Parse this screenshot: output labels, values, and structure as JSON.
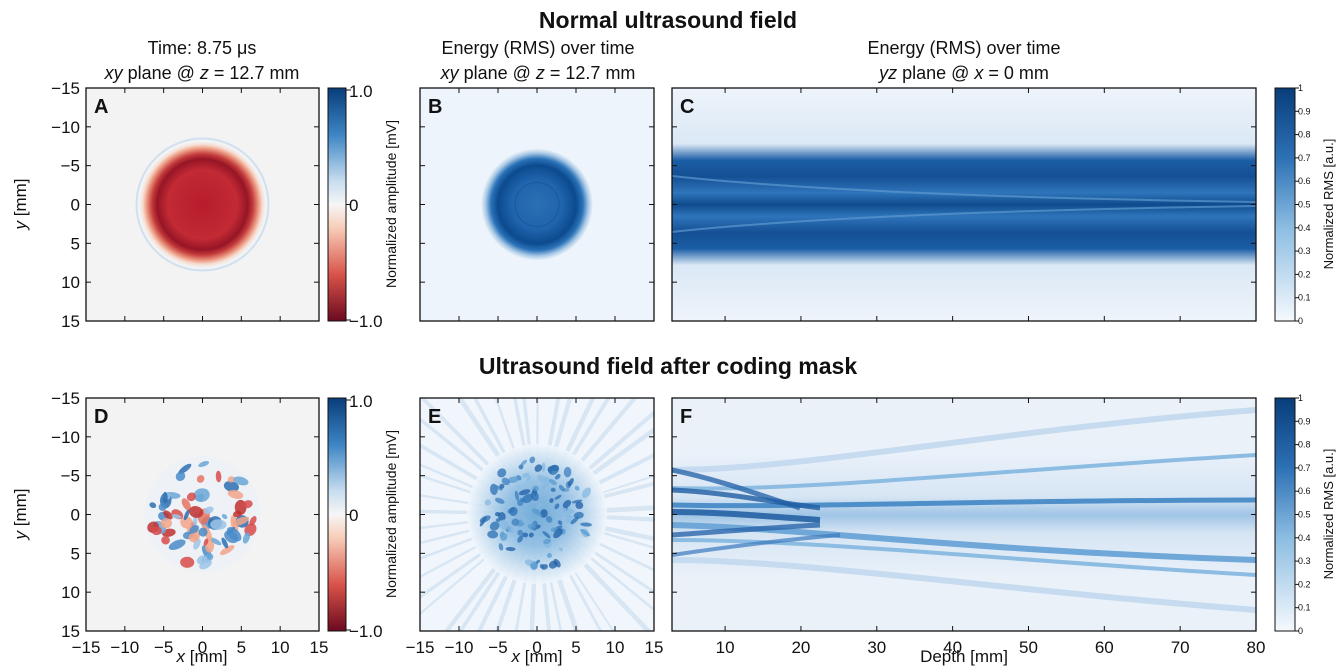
{
  "figure": {
    "top_title": "Normal ultrasound field",
    "bottom_title": "Ultrasound field after coding mask"
  },
  "panel_titles": {
    "a_line1": "Time: 8.75 μs",
    "a_line2_it": "xy",
    "a_line2_rest": " plane @ ",
    "a_line2_z": "z",
    "a_line2_val": " = 12.7 mm",
    "b_line1": "Energy (RMS) over time",
    "b_line2_it": "xy",
    "b_line2_rest": " plane @ ",
    "b_line2_z": "z",
    "b_line2_val": " = 12.7 mm",
    "c_line1": "Energy (RMS) over time",
    "c_line2_it": "yz",
    "c_line2_rest": " plane @ ",
    "c_line2_x": "x",
    "c_line2_val": " = 0 mm"
  },
  "labels": {
    "panel_letters": [
      "A",
      "B",
      "C",
      "D",
      "E",
      "F"
    ],
    "y_label_it": "y",
    "y_label_rest": " [mm]",
    "x_label_it": "x",
    "x_label_rest": " [mm]",
    "depth_label": "Depth [mm]",
    "amp_cbar_label": "Normalized amplitude [mV]",
    "rms_cbar_label": "Normalized RMS [a.u.]"
  },
  "ticks": {
    "y_mm": [
      "−15",
      "−10",
      "−5",
      "0",
      "5",
      "10",
      "15"
    ],
    "x_mm": [
      "−15",
      "−10",
      "−5",
      "0",
      "5",
      "10",
      "15"
    ],
    "depth_mm": [
      "10",
      "20",
      "30",
      "40",
      "50",
      "60",
      "70",
      "80"
    ],
    "amp_cbar": [
      "1.0",
      "0",
      "−1.0"
    ],
    "rms_cbar": [
      "1",
      "0.9",
      "0.8",
      "0.7",
      "0.6",
      "0.5",
      "0.4",
      "0.3",
      "0.2",
      "0.1",
      "0"
    ]
  },
  "colors": {
    "deep_blue": "#0b4a8c",
    "mid_blue": "#5a9bd0",
    "pale_blue": "#e6eff9",
    "deep_red": "#9e1428",
    "mid_red": "#d84a4a",
    "pale_red": "#f8d9cd",
    "neutral": "#f3f3f3"
  },
  "chart_data": [
    {
      "type": "heatmap",
      "panel": "A",
      "quantity": "normalized amplitude",
      "time_us": 8.75,
      "plane": "xy",
      "z_mm": 12.7,
      "x_range_mm": [
        -15,
        15
      ],
      "y_range_mm": [
        -15,
        15
      ],
      "clim": [
        -1.0,
        1.0
      ],
      "colormap": "RdBu",
      "feature": "uniform negative (red) disk, radius ≈ 7.5 mm, thin blue ring at edge"
    },
    {
      "type": "heatmap",
      "panel": "B",
      "quantity": "normalized RMS",
      "plane": "xy",
      "z_mm": 12.7,
      "x_range_mm": [
        -15,
        15
      ],
      "y_range_mm": [
        -15,
        15
      ],
      "clim": [
        0,
        1
      ],
      "feature": "high-energy disk, radius ≈ 6 mm"
    },
    {
      "type": "heatmap",
      "panel": "C",
      "quantity": "normalized RMS",
      "plane": "yz",
      "x_mm": 0,
      "depth_range_mm": [
        3,
        80
      ],
      "y_range_mm": [
        -15,
        15
      ],
      "clim": [
        0,
        1
      ],
      "feature": "collimated beam, |y| ≤ 6 mm, over full depth"
    },
    {
      "type": "heatmap",
      "panel": "D",
      "quantity": "normalized amplitude",
      "plane": "xy",
      "x_range_mm": [
        -15,
        15
      ],
      "y_range_mm": [
        -15,
        15
      ],
      "clim": [
        -1.0,
        1.0
      ],
      "feature": "speckled mixed-sign field inside radius ≈ 7 mm"
    },
    {
      "type": "heatmap",
      "panel": "E",
      "quantity": "normalized RMS",
      "plane": "xy",
      "x_range_mm": [
        -15,
        15
      ],
      "y_range_mm": [
        -15,
        15
      ],
      "clim": [
        0,
        1
      ],
      "feature": "speckled energy, radial streaks"
    },
    {
      "type": "heatmap",
      "panel": "F",
      "quantity": "normalized RMS",
      "plane": "yz",
      "depth_range_mm": [
        3,
        80
      ],
      "y_range_mm": [
        -15,
        15
      ],
      "clim": [
        0,
        1
      ],
      "feature": "multiple diverging beamlets"
    }
  ]
}
